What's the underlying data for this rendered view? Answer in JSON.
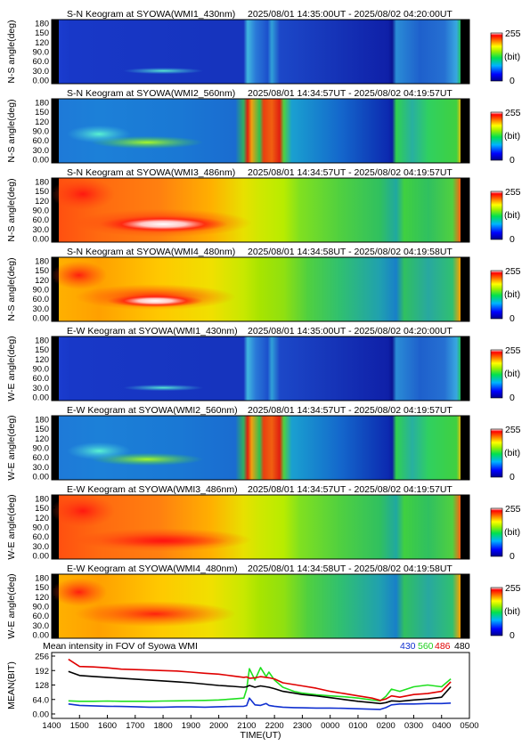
{
  "panels": [
    {
      "title": "S-N Keogram at SYOWA(WMI1_430nm)",
      "period": "2025/08/01 14:35:00UT - 2025/08/02 04:20:00UT",
      "ylabel": "N-S angle(deg)",
      "palette": "dark"
    },
    {
      "title": "S-N Keogram at SYOWA(WMI2_560nm)",
      "period": "2025/08/01 14:34:57UT - 2025/08/02 04:19:57UT",
      "ylabel": "N-S angle(deg)",
      "palette": "green"
    },
    {
      "title": "S-N Keogram at SYOWA(WMI3_486nm)",
      "period": "2025/08/01 14:34:57UT - 2025/08/02 04:19:57UT",
      "ylabel": "N-S angle(deg)",
      "palette": "bright"
    },
    {
      "title": "S-N Keogram at SYOWA(WMI4_480nm)",
      "period": "2025/08/01 14:34:58UT - 2025/08/02 04:19:58UT",
      "ylabel": "N-S angle(deg)",
      "palette": "bright2"
    },
    {
      "title": "E-W Keogram at SYOWA(WMI1_430nm)",
      "period": "2025/08/01 14:35:00UT - 2025/08/02 04:20:00UT",
      "ylabel": "W-E angle(deg)",
      "palette": "dark"
    },
    {
      "title": "E-W Keogram at SYOWA(WMI2_560nm)",
      "period": "2025/08/01 14:34:57UT - 2025/08/02 04:19:57UT",
      "ylabel": "W-E angle(deg)",
      "palette": "green"
    },
    {
      "title": "E-W Keogram at SYOWA(WMI3_486nm)",
      "period": "2025/08/01 14:34:57UT - 2025/08/02 04:19:57UT",
      "ylabel": "W-E angle(deg)",
      "palette": "bright"
    },
    {
      "title": "E-W Keogram at SYOWA(WMI4_480nm)",
      "period": "2025/08/01 14:34:58UT - 2025/08/02 04:19:58UT",
      "ylabel": "W-E angle(deg)",
      "palette": "bright2"
    }
  ],
  "angle_ticks": [
    "180",
    "150",
    "120",
    "90.0",
    "60.0",
    "30.0",
    "0.00"
  ],
  "colorbar": {
    "max": "255",
    "unit": "(bit)",
    "min": "0"
  },
  "chart_data": {
    "type": "line",
    "title": "Mean intensity in FOV of Syowa WMI",
    "xlabel": "TIME(UT)",
    "ylabel": "MEAN(BIT)",
    "x_ticks": [
      "1400",
      "1500",
      "1600",
      "1700",
      "1800",
      "1900",
      "2000",
      "2100",
      "2200",
      "2300",
      "0000",
      "0100",
      "0200",
      "0300",
      "0400",
      "0500"
    ],
    "y_ticks": [
      "256",
      "192",
      "128",
      "64.0",
      "0.00"
    ],
    "ylim": [
      0,
      256
    ],
    "grid": false,
    "legend": "top-right",
    "x_hours": [
      14.6,
      15.0,
      15.5,
      16.0,
      16.5,
      17.0,
      17.5,
      18.0,
      18.5,
      19.0,
      19.5,
      20.0,
      20.5,
      20.9,
      21.0,
      21.1,
      21.3,
      21.5,
      21.7,
      21.8,
      22.0,
      22.3,
      22.7,
      23.0,
      23.5,
      24.0,
      24.5,
      25.0,
      25.5,
      25.8,
      26.0,
      26.2,
      26.5,
      27.0,
      27.5,
      28.0,
      28.33
    ],
    "series": [
      {
        "name": "430",
        "color": "#1030d0",
        "values": [
          44,
          38,
          36,
          34,
          33,
          32,
          30,
          30,
          31,
          31,
          30,
          32,
          33,
          34,
          37,
          70,
          40,
          38,
          46,
          38,
          34,
          30,
          28,
          27,
          26,
          26,
          25,
          23,
          21,
          20,
          28,
          40,
          44,
          44,
          46,
          46,
          48
        ]
      },
      {
        "name": "560",
        "color": "#20e020",
        "values": [
          58,
          56,
          56,
          57,
          56,
          56,
          56,
          57,
          58,
          59,
          60,
          62,
          66,
          70,
          110,
          200,
          150,
          205,
          165,
          185,
          150,
          118,
          100,
          92,
          85,
          80,
          76,
          70,
          62,
          58,
          78,
          110,
          100,
          120,
          128,
          120,
          155
        ]
      },
      {
        "name": "486",
        "color": "#e00000",
        "values": [
          242,
          210,
          208,
          204,
          198,
          196,
          194,
          192,
          190,
          185,
          180,
          176,
          168,
          162,
          164,
          158,
          160,
          165,
          162,
          160,
          155,
          138,
          130,
          124,
          114,
          100,
          90,
          80,
          70,
          60,
          66,
          80,
          74,
          86,
          90,
          100,
          142
        ]
      },
      {
        "name": "480",
        "color": "#000000",
        "values": [
          188,
          170,
          166,
          162,
          158,
          154,
          150,
          146,
          142,
          138,
          132,
          126,
          122,
          118,
          120,
          126,
          118,
          124,
          120,
          118,
          112,
          100,
          92,
          86,
          80,
          72,
          64,
          56,
          50,
          46,
          50,
          58,
          56,
          62,
          66,
          74,
          120
        ]
      }
    ]
  }
}
